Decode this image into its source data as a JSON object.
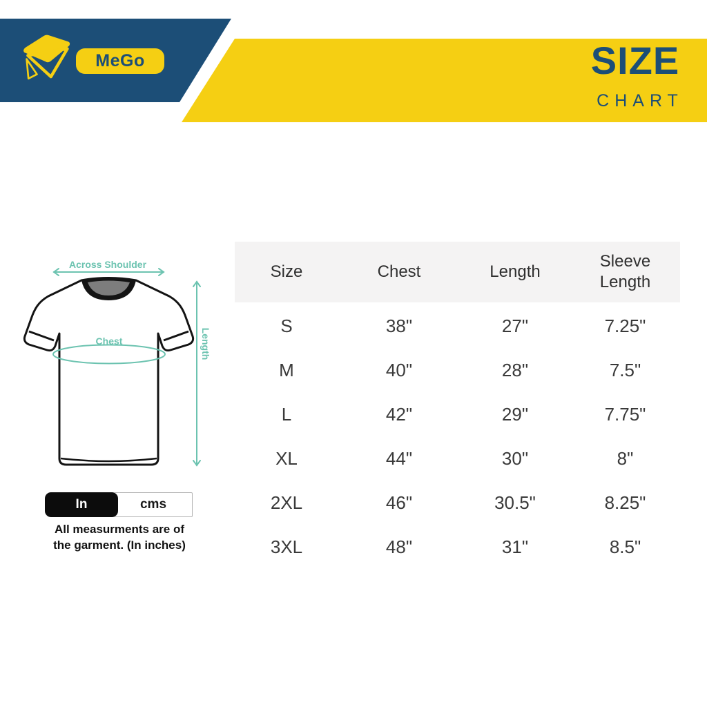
{
  "colors": {
    "navy": "#1C4E77",
    "yellow": "#F5CF13",
    "teal": "#6CC3B0",
    "table_text": "#3A3A3A",
    "header_bg": "#F4F3F3"
  },
  "header": {
    "brand_name": "MeGo",
    "title": "SIZE",
    "subtitle": "CHART"
  },
  "diagram": {
    "labels": {
      "across_shoulder": "Across Shoulder",
      "chest": "Chest",
      "length": "Length"
    }
  },
  "unit_toggle": {
    "options": [
      {
        "label": "In",
        "selected": true
      },
      {
        "label": "cms",
        "selected": false
      }
    ]
  },
  "note": {
    "line1": "All measurments are of",
    "line2": "the garment. (In inches)"
  },
  "chart_data": {
    "type": "table",
    "title": "SIZE CHART",
    "units": "inches",
    "columns": [
      "Size",
      "Chest",
      "Length",
      "Sleeve Length"
    ],
    "rows": [
      [
        "S",
        "38\"",
        "27\"",
        "7.25\""
      ],
      [
        "M",
        "40\"",
        "28\"",
        "7.5\""
      ],
      [
        "L",
        "42\"",
        "29\"",
        "7.75\""
      ],
      [
        "XL",
        "44\"",
        "30\"",
        "8\""
      ],
      [
        "2XL",
        "46\"",
        "30.5\"",
        "8.25\""
      ],
      [
        "3XL",
        "48\"",
        "31\"",
        "8.5\""
      ]
    ]
  }
}
